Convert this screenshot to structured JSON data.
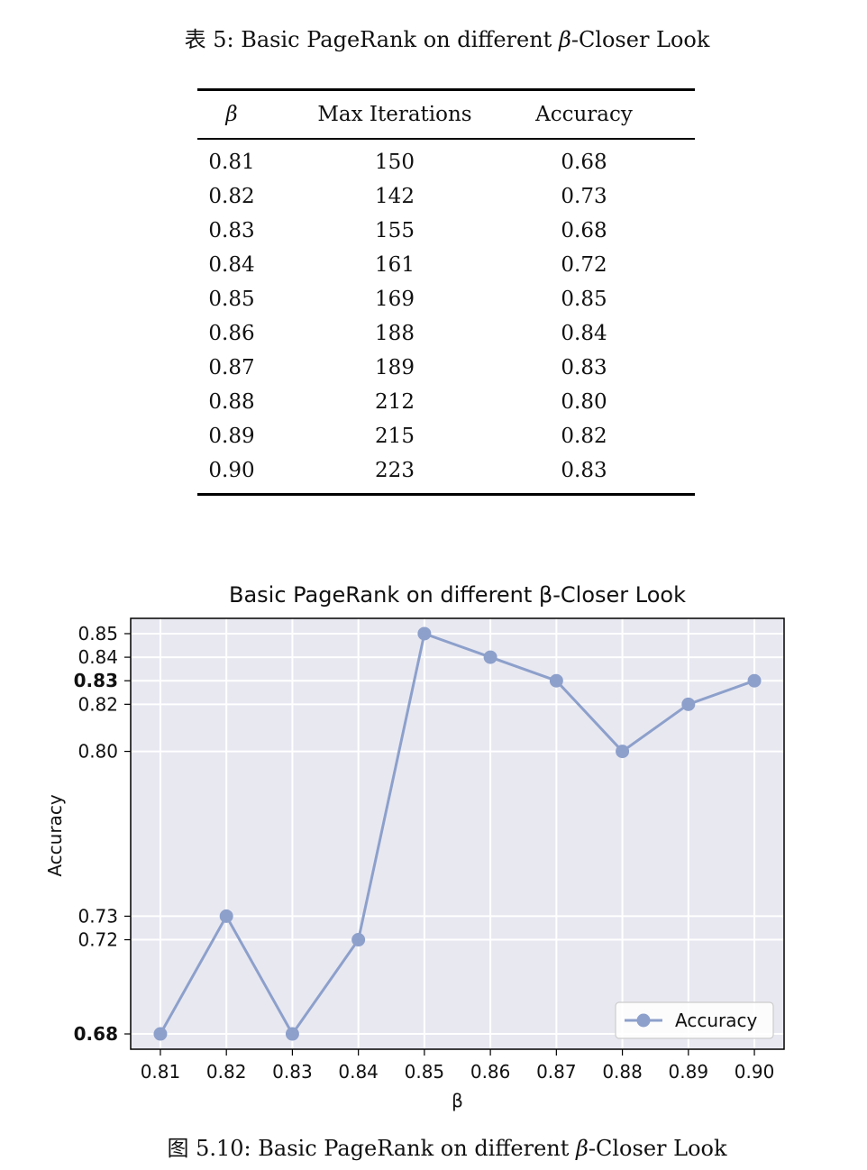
{
  "table": {
    "caption_prefix": "表 5:",
    "caption_text": "Basic PageRank on different",
    "caption_beta": "β",
    "caption_suffix": "-Closer Look",
    "headers": [
      "β",
      "Max Iterations",
      "Accuracy"
    ],
    "rows": [
      [
        "0.81",
        "150",
        "0.68"
      ],
      [
        "0.82",
        "142",
        "0.73"
      ],
      [
        "0.83",
        "155",
        "0.68"
      ],
      [
        "0.84",
        "161",
        "0.72"
      ],
      [
        "0.85",
        "169",
        "0.85"
      ],
      [
        "0.86",
        "188",
        "0.84"
      ],
      [
        "0.87",
        "189",
        "0.83"
      ],
      [
        "0.88",
        "212",
        "0.80"
      ],
      [
        "0.89",
        "215",
        "0.82"
      ],
      [
        "0.90",
        "223",
        "0.83"
      ]
    ]
  },
  "chart_data": {
    "type": "line",
    "title": "Basic PageRank on different β-Closer Look",
    "xlabel": "β",
    "ylabel": "Accuracy",
    "x": [
      0.81,
      0.82,
      0.83,
      0.84,
      0.85,
      0.86,
      0.87,
      0.88,
      0.89,
      0.9
    ],
    "x_tick_labels": [
      "0.81",
      "0.82",
      "0.83",
      "0.84",
      "0.85",
      "0.86",
      "0.87",
      "0.88",
      "0.89",
      "0.90"
    ],
    "y_ticks": [
      0.68,
      0.72,
      0.73,
      0.8,
      0.82,
      0.83,
      0.84,
      0.85
    ],
    "y_tick_labels": [
      "0.68",
      "0.72",
      "0.73",
      "0.80",
      "0.82",
      "0.83",
      "0.84",
      "0.85"
    ],
    "bold_y_ticks": [
      "0.68",
      "0.83"
    ],
    "series": [
      {
        "name": "Accuracy",
        "values": [
          0.68,
          0.73,
          0.68,
          0.72,
          0.85,
          0.84,
          0.83,
          0.8,
          0.82,
          0.83
        ],
        "color": "#8da0cb"
      }
    ],
    "legend": "lower right",
    "grid": true,
    "background": "#e8e8f1"
  },
  "figure": {
    "caption_prefix": "图 5.10:",
    "caption_text": "Basic PageRank on different",
    "caption_beta": "β",
    "caption_suffix": "-Closer Look"
  }
}
